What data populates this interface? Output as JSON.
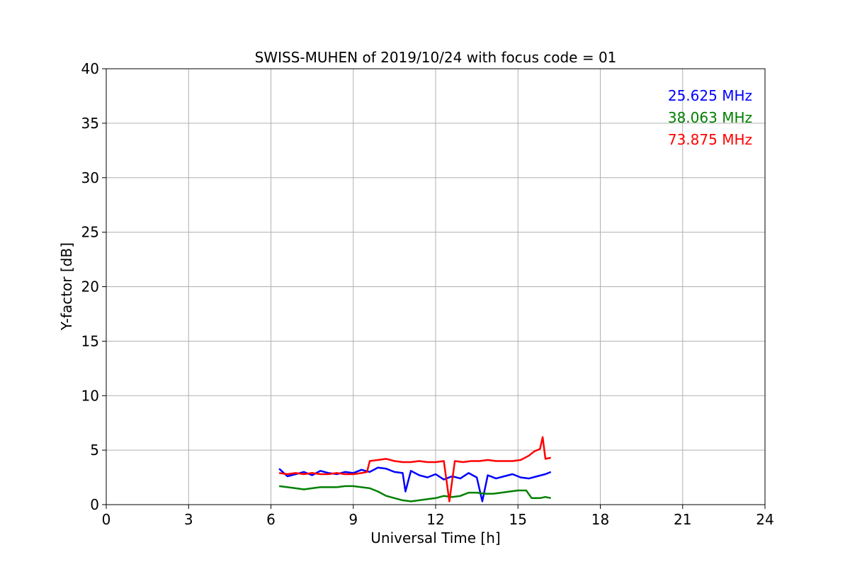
{
  "chart_data": {
    "type": "line",
    "title": "SWISS-MUHEN of 2019/10/24 with focus code = 01",
    "xlabel": "Universal Time [h]",
    "ylabel": "Y-factor [dB]",
    "xlim": [
      0,
      24
    ],
    "ylim": [
      0,
      40
    ],
    "xticks": [
      0,
      3,
      6,
      9,
      12,
      15,
      18,
      21,
      24
    ],
    "yticks": [
      0,
      5,
      10,
      15,
      20,
      25,
      30,
      35,
      40
    ],
    "grid": true,
    "legend_position": "top-right",
    "series": [
      {
        "name": "25.625 MHz",
        "color": "#0000ff",
        "x": [
          6.3,
          6.6,
          6.9,
          7.2,
          7.5,
          7.8,
          8.1,
          8.4,
          8.7,
          9.0,
          9.3,
          9.6,
          9.9,
          10.2,
          10.5,
          10.8,
          10.9,
          11.1,
          11.4,
          11.7,
          12.0,
          12.3,
          12.6,
          12.9,
          13.2,
          13.5,
          13.7,
          13.9,
          14.2,
          14.5,
          14.8,
          15.1,
          15.4,
          15.7,
          16.0,
          16.2
        ],
        "values": [
          3.3,
          2.6,
          2.8,
          3.0,
          2.7,
          3.1,
          2.9,
          2.8,
          3.0,
          2.9,
          3.2,
          3.0,
          3.4,
          3.3,
          3.0,
          2.9,
          1.2,
          3.1,
          2.7,
          2.5,
          2.8,
          2.3,
          2.6,
          2.4,
          2.9,
          2.5,
          0.3,
          2.7,
          2.4,
          2.6,
          2.8,
          2.5,
          2.4,
          2.6,
          2.8,
          3.0
        ]
      },
      {
        "name": "38.063 MHz",
        "color": "#008000",
        "x": [
          6.3,
          6.6,
          6.9,
          7.2,
          7.5,
          7.8,
          8.1,
          8.4,
          8.7,
          9.0,
          9.3,
          9.6,
          9.9,
          10.2,
          10.5,
          10.8,
          11.1,
          11.4,
          11.7,
          12.0,
          12.3,
          12.6,
          12.9,
          13.2,
          13.5,
          13.8,
          14.1,
          14.4,
          14.7,
          15.0,
          15.3,
          15.5,
          15.8,
          16.0,
          16.2
        ],
        "values": [
          1.7,
          1.6,
          1.5,
          1.4,
          1.5,
          1.6,
          1.6,
          1.6,
          1.7,
          1.7,
          1.6,
          1.5,
          1.2,
          0.8,
          0.6,
          0.4,
          0.3,
          0.4,
          0.5,
          0.6,
          0.8,
          0.7,
          0.8,
          1.1,
          1.1,
          1.0,
          1.0,
          1.1,
          1.2,
          1.3,
          1.3,
          0.6,
          0.6,
          0.7,
          0.6
        ]
      },
      {
        "name": "73.875 MHz",
        "color": "#ff0000",
        "x": [
          6.3,
          6.6,
          6.9,
          7.2,
          7.5,
          7.8,
          8.1,
          8.4,
          8.7,
          9.0,
          9.3,
          9.5,
          9.6,
          9.9,
          10.2,
          10.5,
          10.8,
          11.1,
          11.4,
          11.7,
          12.0,
          12.3,
          12.5,
          12.7,
          13.0,
          13.3,
          13.6,
          13.9,
          14.2,
          14.5,
          14.8,
          15.1,
          15.4,
          15.6,
          15.8,
          15.9,
          16.0,
          16.2
        ],
        "values": [
          2.9,
          2.8,
          2.9,
          2.8,
          2.9,
          2.8,
          2.8,
          2.9,
          2.8,
          2.8,
          2.9,
          3.0,
          4.0,
          4.1,
          4.2,
          4.0,
          3.9,
          3.9,
          4.0,
          3.9,
          3.9,
          4.0,
          0.3,
          4.0,
          3.9,
          4.0,
          4.0,
          4.1,
          4.0,
          4.0,
          4.0,
          4.1,
          4.5,
          4.9,
          5.1,
          6.2,
          4.2,
          4.3
        ]
      }
    ]
  }
}
